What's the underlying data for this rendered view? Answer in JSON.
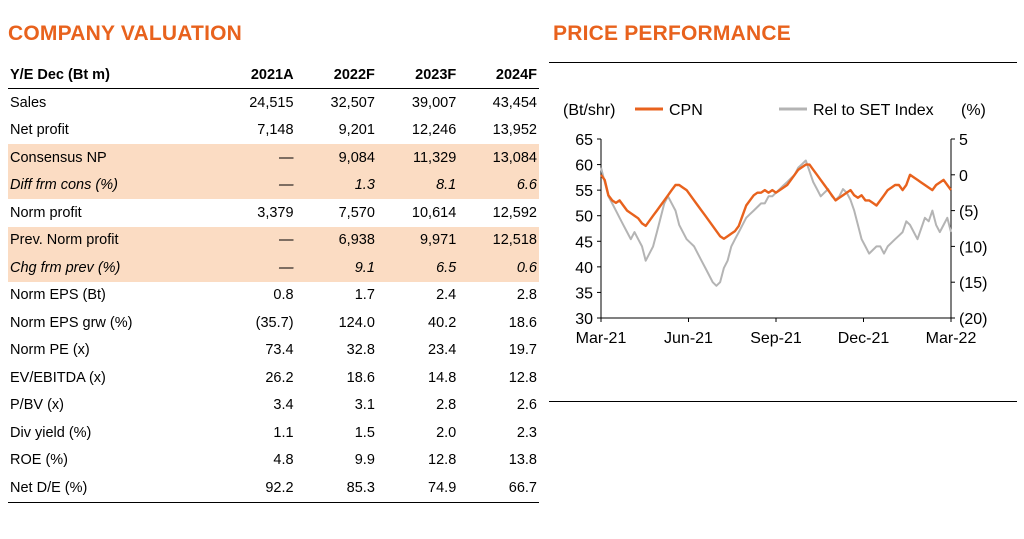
{
  "valuation": {
    "title": "COMPANY VALUATION",
    "header": [
      "Y/E Dec (Bt m)",
      "2021A",
      "2022F",
      "2023F",
      "2024F"
    ],
    "rows": [
      {
        "label": "Sales",
        "values": [
          "24,515",
          "32,507",
          "39,007",
          "43,454"
        ],
        "style": "normal"
      },
      {
        "label": "Net profit",
        "values": [
          "7,148",
          "9,201",
          "12,246",
          "13,952"
        ],
        "style": "normal"
      },
      {
        "label": "Consensus NP",
        "values": [
          "—",
          "9,084",
          "11,329",
          "13,084"
        ],
        "style": "highlight"
      },
      {
        "label": "Diff frm cons (%)",
        "values": [
          "—",
          "1.3",
          "8.1",
          "6.6"
        ],
        "style": "highlight-italic"
      },
      {
        "label": "Norm profit",
        "values": [
          "3,379",
          "7,570",
          "10,614",
          "12,592"
        ],
        "style": "normal"
      },
      {
        "label": "Prev. Norm profit",
        "values": [
          "—",
          "6,938",
          "9,971",
          "12,518"
        ],
        "style": "highlight"
      },
      {
        "label": "Chg frm prev (%)",
        "values": [
          "—",
          "9.1",
          "6.5",
          "0.6"
        ],
        "style": "highlight-italic"
      },
      {
        "label": "Norm EPS (Bt)",
        "values": [
          "0.8",
          "1.7",
          "2.4",
          "2.8"
        ],
        "style": "normal"
      },
      {
        "label": "Norm EPS grw (%)",
        "values": [
          "(35.7)",
          "124.0",
          "40.2",
          "18.6"
        ],
        "style": "normal"
      },
      {
        "label": "Norm PE (x)",
        "values": [
          "73.4",
          "32.8",
          "23.4",
          "19.7"
        ],
        "style": "normal"
      },
      {
        "label": "EV/EBITDA (x)",
        "values": [
          "26.2",
          "18.6",
          "14.8",
          "12.8"
        ],
        "style": "normal"
      },
      {
        "label": "P/BV (x)",
        "values": [
          "3.4",
          "3.1",
          "2.8",
          "2.6"
        ],
        "style": "normal"
      },
      {
        "label": "Div yield (%)",
        "values": [
          "1.1",
          "1.5",
          "2.0",
          "2.3"
        ],
        "style": "normal"
      },
      {
        "label": "ROE (%)",
        "values": [
          "4.8",
          "9.9",
          "12.8",
          "13.8"
        ],
        "style": "normal"
      },
      {
        "label": "Net D/E (%)",
        "values": [
          "92.2",
          "85.3",
          "74.9",
          "66.7"
        ],
        "style": "normal"
      }
    ],
    "highlight_color": "#fbdcc3"
  },
  "performance": {
    "title": "PRICE PERFORMANCE",
    "title_color": "#e8621d"
  },
  "chart_data": {
    "type": "line",
    "title": "",
    "left_axis_label": "(Bt/shr)",
    "right_axis_label": "(%)",
    "left_ylim": [
      30,
      65
    ],
    "left_ticks": [
      "65",
      "60",
      "55",
      "50",
      "45",
      "40",
      "35",
      "30"
    ],
    "right_ylim": [
      -20,
      5
    ],
    "right_ticks": [
      "5",
      "0",
      "(5)",
      "(10)",
      "(15)",
      "(20)"
    ],
    "x_tick_labels": [
      "Mar-21",
      "Jun-21",
      "Sep-21",
      "Dec-21",
      "Mar-22"
    ],
    "legend_position": "top",
    "series": [
      {
        "name": "CPN",
        "color": "#e8621d",
        "axis": "left",
        "values": [
          58,
          57,
          54,
          53,
          52.5,
          53,
          52,
          51,
          50.5,
          50,
          49.5,
          48.5,
          48,
          49,
          50,
          51,
          52,
          53,
          54,
          55,
          56,
          56,
          55.5,
          55,
          54,
          53,
          52,
          51,
          50,
          49,
          48,
          47,
          46,
          45.5,
          46,
          46.5,
          47,
          48,
          50,
          52,
          53,
          54,
          54.5,
          54.5,
          55,
          54.5,
          55,
          54.5,
          55,
          55.5,
          56,
          57,
          58,
          59,
          59.5,
          60,
          60,
          59,
          58,
          57,
          56,
          55,
          54,
          53,
          53.5,
          54,
          54.5,
          55,
          54,
          53.5,
          54,
          53,
          53,
          52.5,
          52,
          53,
          54,
          55,
          55.5,
          56,
          56,
          55,
          56,
          58,
          57.5,
          57,
          56.5,
          56,
          55.5,
          55,
          56,
          56.5,
          57,
          56,
          55
        ]
      },
      {
        "name": "Rel to SET Index",
        "color": "#b4b4b4",
        "axis": "right",
        "values": [
          1,
          -1,
          -3,
          -4,
          -5,
          -6,
          -7,
          -8,
          -9,
          -8,
          -9,
          -10,
          -12,
          -11,
          -10,
          -8,
          -6,
          -4,
          -3,
          -4,
          -5,
          -7,
          -8,
          -9,
          -9.5,
          -10,
          -11,
          -12,
          -13,
          -14,
          -15,
          -15.5,
          -15,
          -13,
          -12,
          -10,
          -9,
          -8,
          -7,
          -6,
          -5.5,
          -5,
          -4.5,
          -4,
          -4,
          -3,
          -3,
          -2.5,
          -2,
          -1.5,
          -1,
          -0.5,
          0,
          1,
          1.5,
          2,
          0.5,
          -1,
          -2,
          -3,
          -2.5,
          -2,
          -3,
          -3.5,
          -3,
          -2,
          -2.5,
          -3.5,
          -5,
          -7,
          -9,
          -10,
          -11,
          -10.5,
          -10,
          -10,
          -11,
          -10,
          -9.5,
          -9,
          -8.5,
          -8,
          -6.5,
          -7,
          -8,
          -9,
          -7.5,
          -6,
          -6.5,
          -5,
          -7,
          -8,
          -7,
          -6,
          -8
        ]
      }
    ]
  }
}
